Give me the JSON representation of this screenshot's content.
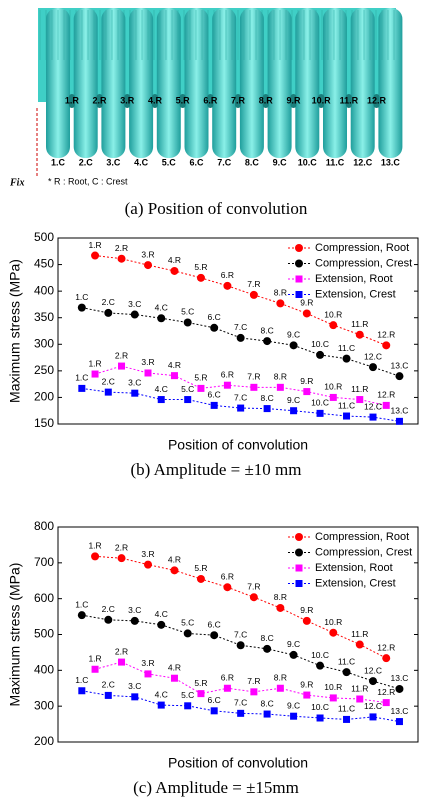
{
  "diagram": {
    "root_labels": [
      "1.R",
      "2.R",
      "3.R",
      "4.R",
      "5.R",
      "6.R",
      "7.R",
      "8.R",
      "9.R",
      "10.R",
      "11.R",
      "12.R"
    ],
    "crest_labels": [
      "1.C",
      "2.C",
      "3.C",
      "4.C",
      "5.C",
      "6.C",
      "7.C",
      "8.C",
      "9.C",
      "10.C",
      "11.C",
      "12.C",
      "13.C"
    ],
    "fix_label": "Fix",
    "note": "* R : Root, C : Crest",
    "caption": "(a)  Position  of  convolution"
  },
  "chart_data": [
    {
      "type": "line",
      "caption": "(b)  Amplitude  =  ±10  mm",
      "ylabel": "Maximum stress (MPa)",
      "xlabel": "Position of convolution",
      "xlim": [
        0.1,
        13.7
      ],
      "ylim": [
        150,
        500
      ],
      "yticks": [
        150,
        200,
        250,
        300,
        350,
        400,
        450,
        500
      ],
      "legend": "upper right",
      "series": [
        {
          "name": "Compression, Root",
          "color": "#ff0000",
          "marker": "circle",
          "x": [
            1.5,
            2.5,
            3.5,
            4.5,
            5.5,
            6.5,
            7.5,
            8.5,
            9.5,
            10.5,
            11.5,
            12.5
          ],
          "values": [
            467,
            461,
            449,
            438,
            425,
            410,
            393,
            377,
            358,
            336,
            318,
            298
          ],
          "point_labels": [
            "1.R",
            "2.R",
            "3.R",
            "4.R",
            "5.R",
            "6.R",
            "7.R",
            "8.R",
            "9.R",
            "10.R",
            "11.R",
            "12.R"
          ]
        },
        {
          "name": "Compression, Crest",
          "color": "#000000",
          "marker": "circle",
          "x": [
            1,
            2,
            3,
            4,
            5,
            6,
            7,
            8,
            9,
            10,
            11,
            12,
            13
          ],
          "values": [
            369,
            359,
            356,
            349,
            341,
            331,
            312,
            306,
            298,
            280,
            273,
            257,
            240
          ],
          "point_labels": [
            "1.C",
            "2.C",
            "3.C",
            "4.C",
            "5.C",
            "6.C",
            "7.C",
            "8.C",
            "9.C",
            "10.C",
            "11.C",
            "12.C",
            "13.C"
          ]
        },
        {
          "name": "Extension, Root",
          "color": "#ff00ff",
          "marker": "square",
          "x": [
            1.5,
            2.5,
            3.5,
            4.5,
            5.5,
            6.5,
            7.5,
            8.5,
            9.5,
            10.5,
            11.5,
            12.5
          ],
          "values": [
            244,
            259,
            246,
            241,
            217,
            223,
            219,
            219,
            211,
            200,
            196,
            185
          ],
          "point_labels": [
            "1.R",
            "2.R",
            "3.R",
            "4.R",
            "5.R",
            "6.R",
            "7.R",
            "8.R",
            "9.R",
            "10.R",
            "11.R",
            "12.R"
          ]
        },
        {
          "name": "Extension, Crest",
          "color": "#0000ff",
          "marker": "square",
          "x": [
            1,
            2,
            3,
            4,
            5,
            6,
            7,
            8,
            9,
            10,
            11,
            12,
            13
          ],
          "values": [
            217,
            210,
            208,
            196,
            196,
            185,
            180,
            179,
            175,
            170,
            165,
            163,
            155
          ],
          "point_labels": [
            "1.C",
            "2.C",
            "3.C",
            "4.C",
            "5.C",
            "6.C",
            "7.C",
            "8.C",
            "9.C",
            "10.C",
            "11.C",
            "12.C",
            "13.C"
          ]
        }
      ]
    },
    {
      "type": "line",
      "caption": "(c)  Amplitude  =  ±15mm",
      "ylabel": "Maximum stress (MPa)",
      "xlabel": "Position of convolution",
      "xlim": [
        0.1,
        13.7
      ],
      "ylim": [
        200,
        800
      ],
      "yticks": [
        200,
        300,
        400,
        500,
        600,
        700,
        800
      ],
      "legend": "upper right",
      "series": [
        {
          "name": "Compression, Root",
          "color": "#ff0000",
          "marker": "circle",
          "x": [
            1.5,
            2.5,
            3.5,
            4.5,
            5.5,
            6.5,
            7.5,
            8.5,
            9.5,
            10.5,
            11.5,
            12.5
          ],
          "values": [
            718,
            713,
            695,
            679,
            655,
            632,
            604,
            574,
            538,
            505,
            472,
            434
          ],
          "point_labels": [
            "1.R",
            "2.R",
            "3.R",
            "4.R",
            "5.R",
            "6.R",
            "7.R",
            "8.R",
            "9.R",
            "10.R",
            "11.R",
            "12.R"
          ]
        },
        {
          "name": "Compression, Crest",
          "color": "#000000",
          "marker": "circle",
          "x": [
            1,
            2,
            3,
            4,
            5,
            6,
            7,
            8,
            9,
            10,
            11,
            12,
            13
          ],
          "values": [
            554,
            541,
            538,
            527,
            503,
            498,
            470,
            460,
            443,
            413,
            395,
            370,
            348
          ],
          "point_labels": [
            "1.C",
            "2.C",
            "3.C",
            "4.C",
            "5.C",
            "6.C",
            "7.C",
            "8.C",
            "9.C",
            "10.C",
            "11.C",
            "12.C",
            "13.C"
          ]
        },
        {
          "name": "Extension, Root",
          "color": "#ff00ff",
          "marker": "square",
          "x": [
            1.5,
            2.5,
            3.5,
            4.5,
            5.5,
            6.5,
            7.5,
            8.5,
            9.5,
            10.5,
            11.5,
            12.5
          ],
          "values": [
            403,
            423,
            390,
            378,
            335,
            350,
            340,
            350,
            331,
            323,
            320,
            310
          ],
          "point_labels": [
            "1.R",
            "2.R",
            "3.R",
            "4.R",
            "5.R",
            "6.R",
            "7.R",
            "8.R",
            "9.R",
            "10.R",
            "11.R",
            "12.R"
          ]
        },
        {
          "name": "Extension, Crest",
          "color": "#0000ff",
          "marker": "square",
          "x": [
            1,
            2,
            3,
            4,
            5,
            6,
            7,
            8,
            9,
            10,
            11,
            12,
            13
          ],
          "values": [
            343,
            330,
            326,
            303,
            301,
            287,
            280,
            278,
            272,
            267,
            263,
            270,
            257
          ],
          "point_labels": [
            "1.C",
            "2.C",
            "3.C",
            "4.C",
            "5.C",
            "6.C",
            "7.C",
            "8.C",
            "9.C",
            "10.C",
            "11.C",
            "12.C",
            "13.C"
          ]
        }
      ]
    }
  ]
}
